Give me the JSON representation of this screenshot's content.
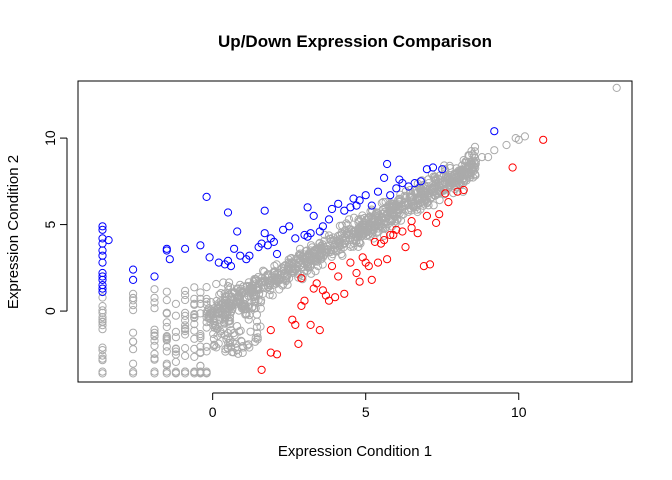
{
  "chart_data": {
    "type": "scatter",
    "title": "Up/Down Expression Comparison",
    "xlabel": "Expression Condition 1",
    "ylabel": "Expression Condition 2",
    "xlim": [
      -4.4,
      13.7
    ],
    "ylim": [
      -4.1,
      13.3
    ],
    "xticks": [
      0,
      5,
      10
    ],
    "yticks": [
      0,
      5,
      10
    ],
    "grid": false,
    "legend": "none",
    "colors": {
      "up": "#0000ff",
      "down": "#ff0000",
      "neutral": "#aaaaaa"
    },
    "series": [
      {
        "color": "#0000ff",
        "x": [
          -3.6,
          -3.6,
          -3.6,
          -3.6,
          -3.6,
          -3.6,
          -3.6,
          -3.6,
          -3.6,
          -3.6,
          -3.6,
          -3.6,
          -3.6,
          -3.4,
          -2.6,
          -2.6,
          -1.9,
          -1.5,
          -1.5,
          -1.4,
          -0.9,
          -0.4,
          -0.2,
          -0.1,
          0.2,
          0.4,
          0.5,
          0.6,
          0.7,
          0.8,
          0.9,
          1.1,
          1.2,
          1.5,
          1.6,
          1.7,
          1.8,
          1.9,
          2.0,
          2.1,
          2.3,
          2.5,
          2.7,
          3.0,
          3.1,
          3.2,
          3.3,
          3.5,
          3.6,
          3.8,
          3.9,
          4.1,
          4.3,
          4.5,
          4.6,
          4.8,
          5.0,
          5.2,
          5.4,
          5.6,
          5.8,
          6.0,
          6.2,
          6.4,
          6.6,
          6.8,
          7.0,
          7.2,
          7.5,
          9.2,
          0.5,
          1.7,
          3.1,
          4.7,
          5.7,
          6.1
        ],
        "y": [
          4.9,
          4.7,
          4.2,
          3.9,
          3.5,
          3.2,
          2.8,
          2.2,
          2.0,
          1.8,
          1.5,
          1.3,
          1.1,
          4.1,
          2.4,
          1.8,
          2.0,
          3.5,
          3.6,
          3.0,
          3.6,
          3.8,
          6.6,
          3.1,
          2.8,
          2.7,
          2.9,
          2.6,
          3.6,
          4.6,
          3.2,
          3.0,
          3.2,
          3.7,
          3.9,
          4.5,
          3.8,
          4.2,
          4.0,
          3.3,
          4.7,
          4.9,
          4.2,
          4.4,
          6.0,
          4.5,
          5.5,
          4.6,
          4.9,
          5.3,
          5.9,
          6.2,
          5.8,
          6.0,
          6.5,
          6.4,
          6.7,
          6.1,
          6.9,
          7.7,
          6.7,
          7.1,
          7.4,
          7.2,
          7.4,
          7.5,
          8.2,
          8.3,
          8.2,
          10.4,
          5.7,
          5.8,
          4.3,
          6.1,
          8.5,
          7.6
        ]
      },
      {
        "color": "#ff0000",
        "x": [
          1.6,
          1.9,
          1.9,
          2.1,
          2.6,
          2.7,
          2.8,
          2.9,
          2.9,
          3.0,
          3.2,
          3.3,
          3.4,
          3.5,
          3.6,
          3.7,
          3.8,
          3.9,
          4.0,
          4.1,
          4.3,
          4.5,
          4.7,
          4.8,
          4.9,
          5.0,
          5.2,
          5.3,
          5.4,
          5.5,
          5.6,
          5.7,
          5.8,
          5.9,
          6.0,
          6.2,
          6.3,
          6.5,
          6.7,
          6.9,
          7.0,
          7.1,
          7.3,
          7.4,
          7.6,
          7.7,
          8.0,
          8.2,
          9.8,
          10.8,
          5.1,
          6.5
        ],
        "y": [
          -3.4,
          -2.4,
          -1.1,
          -2.5,
          -0.5,
          -0.8,
          -1.9,
          0.3,
          1.9,
          0.6,
          -0.8,
          1.3,
          1.6,
          -1.1,
          1.2,
          0.9,
          0.6,
          2.6,
          0.8,
          2.0,
          1.0,
          2.8,
          2.2,
          1.7,
          3.1,
          2.8,
          1.8,
          4.0,
          2.8,
          3.9,
          4.1,
          3.0,
          4.4,
          4.4,
          4.7,
          4.6,
          3.7,
          4.8,
          4.5,
          2.6,
          5.5,
          2.7,
          5.1,
          5.6,
          6.8,
          6.3,
          6.9,
          7.0,
          8.3,
          9.9,
          2.6,
          5.2
        ]
      }
    ]
  }
}
